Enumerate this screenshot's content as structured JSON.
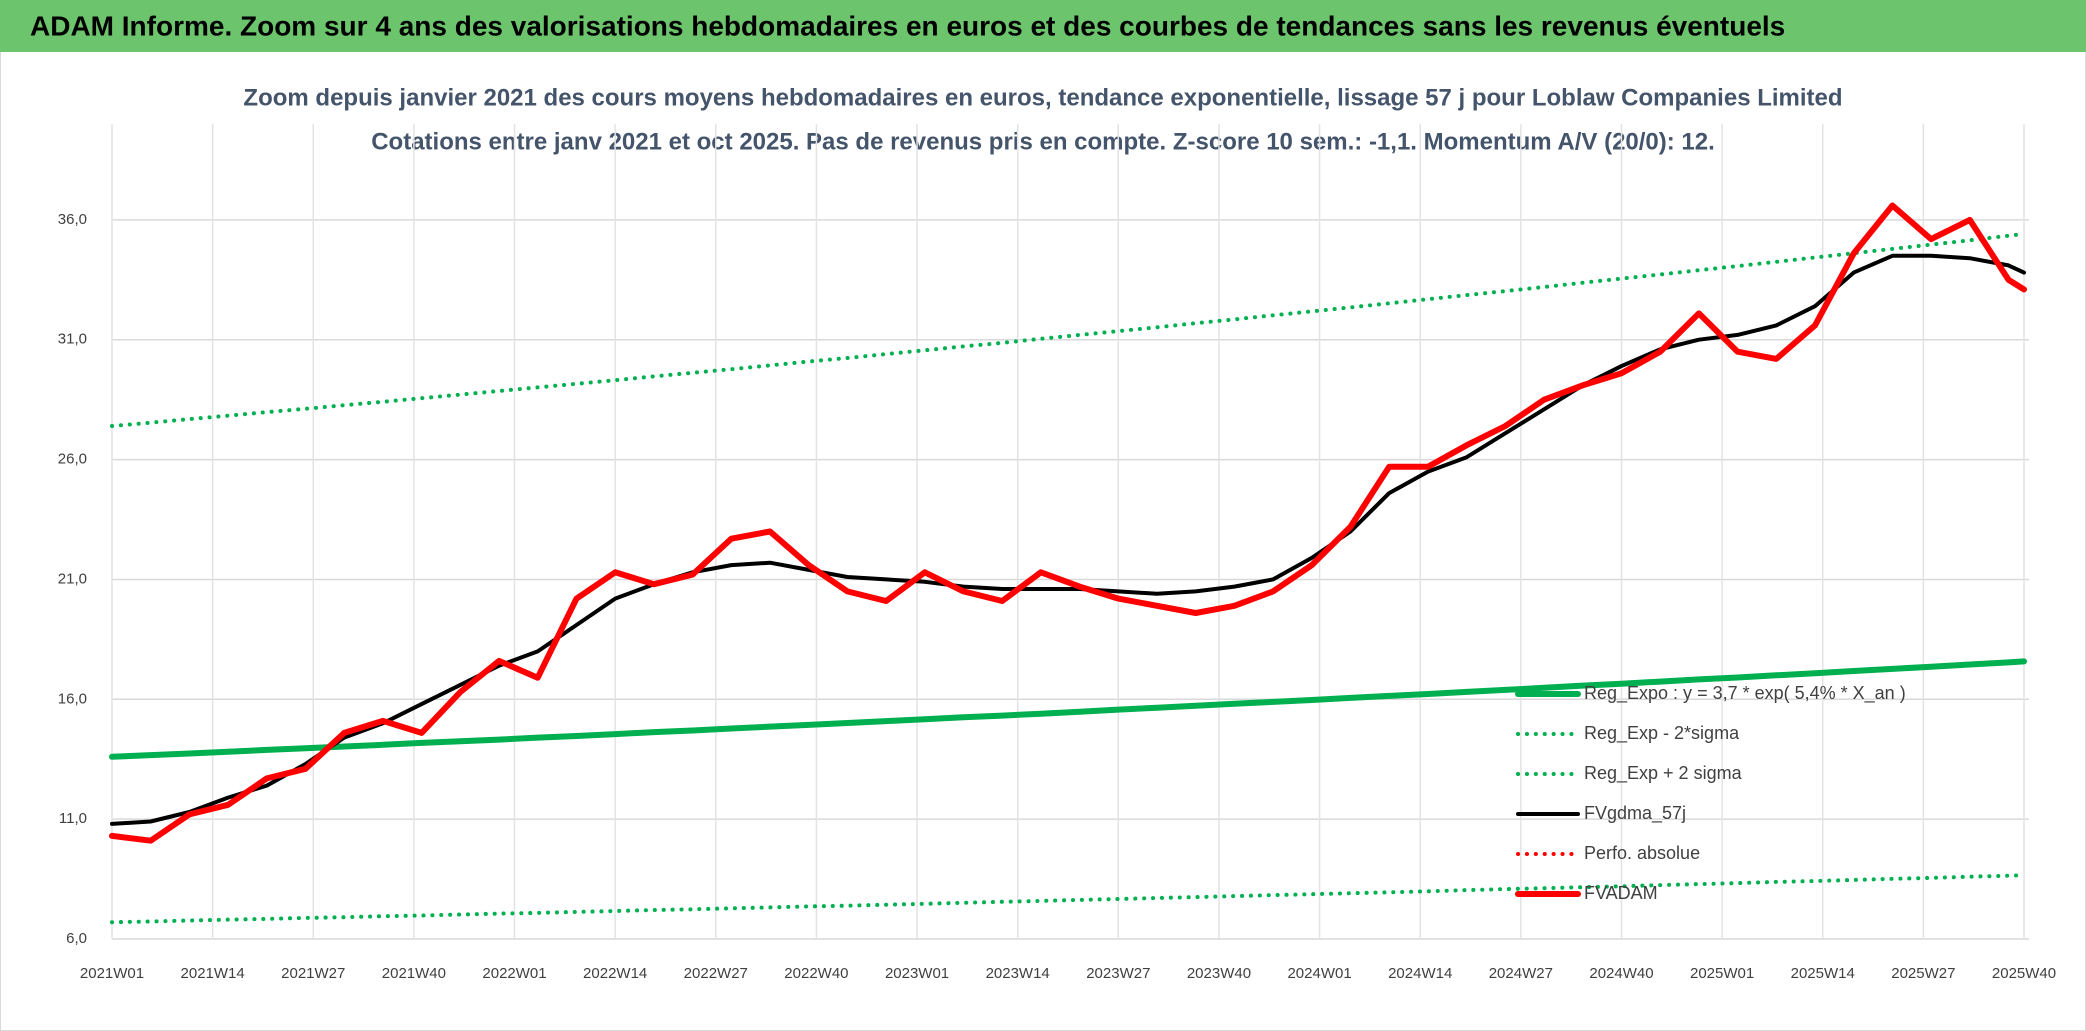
{
  "header": {
    "title": "ADAM Informe. Zoom sur 4 ans des valorisations hebdomadaires en euros et des courbes de tendances sans les revenus éventuels"
  },
  "chart_data": {
    "type": "line",
    "title": "Zoom depuis janvier 2021 des cours moyens hebdomadaires en euros, tendance exponentielle, lissage 57 j pour Loblaw Companies Limited",
    "subtitle": "Cotations entre janv 2021 et oct 2025. Pas de revenus pris en compte. Z-score 10 sem.: -1,1. Momentum A/V (20/0): 12.",
    "x": [
      0,
      5,
      10,
      15,
      20,
      25,
      30,
      35,
      40,
      45,
      50,
      55,
      60,
      65,
      70,
      75,
      80,
      85,
      90,
      95,
      100,
      105,
      110,
      115,
      120,
      125,
      130,
      135,
      140,
      145,
      150,
      155,
      160,
      165,
      170,
      175,
      180,
      185,
      190,
      195,
      200,
      205,
      210,
      215,
      220,
      225,
      230,
      235,
      240,
      245,
      247
    ],
    "xlim": [
      0,
      247
    ],
    "xticks": [
      {
        "value": 0,
        "label": "2021W01"
      },
      {
        "value": 13,
        "label": "2021W14"
      },
      {
        "value": 26,
        "label": "2021W27"
      },
      {
        "value": 39,
        "label": "2021W40"
      },
      {
        "value": 52,
        "label": "2022W01"
      },
      {
        "value": 65,
        "label": "2022W14"
      },
      {
        "value": 78,
        "label": "2022W27"
      },
      {
        "value": 91,
        "label": "2022W40"
      },
      {
        "value": 104,
        "label": "2023W01"
      },
      {
        "value": 117,
        "label": "2023W14"
      },
      {
        "value": 130,
        "label": "2023W27"
      },
      {
        "value": 143,
        "label": "2023W40"
      },
      {
        "value": 156,
        "label": "2024W01"
      },
      {
        "value": 169,
        "label": "2024W14"
      },
      {
        "value": 182,
        "label": "2024W27"
      },
      {
        "value": 195,
        "label": "2024W40"
      },
      {
        "value": 208,
        "label": "2025W01"
      },
      {
        "value": 221,
        "label": "2025W14"
      },
      {
        "value": 234,
        "label": "2025W27"
      },
      {
        "value": 247,
        "label": "2025W40"
      }
    ],
    "ylim": [
      6,
      40
    ],
    "yticks": [
      {
        "value": 6,
        "label": "6,0"
      },
      {
        "value": 11,
        "label": "11,0"
      },
      {
        "value": 16,
        "label": "16,0"
      },
      {
        "value": 21,
        "label": "21,0"
      },
      {
        "value": 26,
        "label": "26,0"
      },
      {
        "value": 31,
        "label": "31,0"
      },
      {
        "value": 36,
        "label": "36,0"
      }
    ],
    "grid": true,
    "series": [
      {
        "name": "Reg_Expo : y = 3,7 * exp( 5,4% *  X_an )",
        "color": "#00b050",
        "style": "solid",
        "width": 6,
        "values": [
          13.6,
          13.67,
          13.74,
          13.81,
          13.89,
          13.96,
          14.03,
          14.1,
          14.18,
          14.25,
          14.32,
          14.4,
          14.47,
          14.55,
          14.63,
          14.7,
          14.78,
          14.86,
          14.93,
          15.01,
          15.09,
          15.17,
          15.25,
          15.32,
          15.4,
          15.48,
          15.57,
          15.65,
          15.73,
          15.81,
          15.89,
          15.97,
          16.06,
          16.14,
          16.22,
          16.31,
          16.39,
          16.48,
          16.57,
          16.65,
          16.74,
          16.83,
          16.91,
          17.0,
          17.09,
          17.18,
          17.27,
          17.36,
          17.45,
          17.54,
          17.58
        ]
      },
      {
        "name": "Reg_Exp - 2*sigma",
        "color": "#00b050",
        "style": "dotted",
        "width": 4,
        "values": [
          6.7,
          6.73,
          6.77,
          6.81,
          6.84,
          6.88,
          6.91,
          6.95,
          6.98,
          7.02,
          7.06,
          7.09,
          7.13,
          7.17,
          7.21,
          7.24,
          7.28,
          7.32,
          7.36,
          7.39,
          7.43,
          7.47,
          7.51,
          7.55,
          7.59,
          7.63,
          7.67,
          7.71,
          7.75,
          7.79,
          7.83,
          7.87,
          7.91,
          7.95,
          7.99,
          8.04,
          8.08,
          8.12,
          8.16,
          8.2,
          8.25,
          8.29,
          8.33,
          8.38,
          8.42,
          8.46,
          8.51,
          8.55,
          8.6,
          8.64,
          8.66
        ]
      },
      {
        "name": "Reg_Exp + 2 sigma",
        "color": "#00b050",
        "style": "dotted",
        "width": 4,
        "values": [
          27.4,
          27.54,
          27.69,
          27.83,
          27.98,
          28.12,
          28.27,
          28.41,
          28.56,
          28.71,
          28.86,
          29.01,
          29.16,
          29.31,
          29.47,
          29.62,
          29.77,
          29.93,
          30.09,
          30.24,
          30.4,
          30.56,
          30.72,
          30.87,
          31.04,
          31.2,
          31.36,
          31.52,
          31.69,
          31.85,
          32.02,
          32.18,
          32.35,
          32.52,
          32.69,
          32.86,
          33.03,
          33.2,
          33.38,
          33.55,
          33.72,
          33.9,
          34.07,
          34.25,
          34.43,
          34.61,
          34.79,
          34.97,
          35.15,
          35.34,
          35.41
        ]
      },
      {
        "name": "FVgdma_57j",
        "color": "#000000",
        "style": "solid",
        "width": 4,
        "values": [
          10.8,
          10.9,
          11.3,
          11.9,
          12.4,
          13.3,
          14.4,
          15.0,
          15.8,
          16.6,
          17.4,
          18.0,
          19.1,
          20.2,
          20.8,
          21.3,
          21.6,
          21.7,
          21.4,
          21.1,
          21.0,
          20.9,
          20.7,
          20.6,
          20.6,
          20.6,
          20.5,
          20.4,
          20.5,
          20.7,
          21.0,
          21.9,
          23.0,
          24.6,
          25.5,
          26.1,
          27.1,
          28.1,
          29.1,
          29.9,
          30.6,
          31.0,
          31.2,
          31.6,
          32.4,
          33.8,
          34.5,
          34.5,
          34.4,
          34.1,
          33.8
        ]
      },
      {
        "name": "Perfo. absolue",
        "color": "#ff0000",
        "style": "dotted",
        "width": 4,
        "values": [
          null,
          null,
          null,
          null,
          null,
          null,
          null,
          null,
          null,
          null,
          null,
          null,
          null,
          null,
          null,
          null,
          null,
          null,
          null,
          null,
          null,
          null,
          null,
          null,
          null,
          null,
          null,
          null,
          null,
          null,
          null,
          null,
          null,
          null,
          null,
          null,
          null,
          null,
          null,
          null,
          null,
          null,
          null,
          null,
          null,
          null,
          null,
          null,
          null,
          null,
          null
        ]
      },
      {
        "name": "FVADAM",
        "color": "#ff0000",
        "style": "solid",
        "width": 6,
        "values": [
          10.3,
          10.1,
          11.2,
          11.6,
          12.7,
          13.1,
          14.6,
          15.1,
          14.6,
          16.3,
          17.6,
          16.9,
          20.2,
          21.3,
          20.8,
          21.2,
          22.7,
          23.0,
          21.6,
          20.5,
          20.1,
          21.3,
          20.5,
          20.1,
          21.3,
          20.7,
          20.2,
          19.9,
          19.6,
          19.9,
          20.5,
          21.6,
          23.2,
          25.7,
          25.7,
          26.6,
          27.4,
          28.5,
          29.1,
          29.6,
          30.5,
          32.1,
          30.5,
          30.2,
          31.6,
          34.6,
          36.6,
          35.2,
          36.0,
          33.5,
          33.1
        ]
      }
    ]
  }
}
